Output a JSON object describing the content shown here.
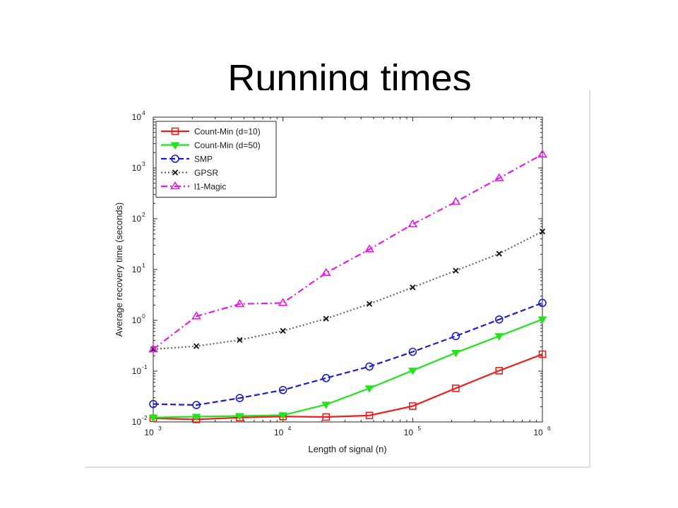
{
  "slide": {
    "title": "Running times"
  },
  "chart_data": {
    "type": "line",
    "xlabel": "Length of signal (n)",
    "ylabel": "Average recovery time (seconds)",
    "x_scale": "log",
    "y_scale": "log",
    "xlim": [
      1000,
      1000000
    ],
    "ylim": [
      0.01,
      10000
    ],
    "x_ticks": [
      {
        "value": 1000,
        "base": "10",
        "exp": "3"
      },
      {
        "value": 10000,
        "base": "10",
        "exp": "4"
      },
      {
        "value": 100000,
        "base": "10",
        "exp": "5"
      },
      {
        "value": 1000000,
        "base": "10",
        "exp": "6"
      }
    ],
    "y_ticks": [
      {
        "value": 0.01,
        "base": "10",
        "exp": "-2"
      },
      {
        "value": 0.1,
        "base": "10",
        "exp": "-1"
      },
      {
        "value": 1,
        "base": "10",
        "exp": "0"
      },
      {
        "value": 10,
        "base": "10",
        "exp": "1"
      },
      {
        "value": 100,
        "base": "10",
        "exp": "2"
      },
      {
        "value": 1000,
        "base": "10",
        "exp": "3"
      },
      {
        "value": 10000,
        "base": "10",
        "exp": "4"
      }
    ],
    "grid": false,
    "legend_position": "top-left",
    "x": [
      1000,
      2150,
      4640,
      10000,
      21500,
      46400,
      100000,
      215000,
      464000,
      1000000
    ],
    "series": [
      {
        "name": "Count-Min (d=10)",
        "key": "count-min-d10",
        "color": "#ee1c1c",
        "marker": "square",
        "dash": "solid",
        "values": [
          0.0118,
          0.0112,
          0.0122,
          0.0128,
          0.0125,
          0.0134,
          0.0205,
          0.046,
          0.102,
          0.215
        ]
      },
      {
        "name": "Count-Min (d=50)",
        "key": "count-min-d50",
        "color": "#22e41c",
        "marker": "triangle-down",
        "dash": "solid",
        "values": [
          0.0122,
          0.0127,
          0.0131,
          0.0136,
          0.022,
          0.046,
          0.103,
          0.23,
          0.49,
          1.05
        ]
      },
      {
        "name": "SMP",
        "key": "smp",
        "color": "#1c1cd6",
        "marker": "circle",
        "dash": "dashed",
        "values": [
          0.0225,
          0.0215,
          0.0295,
          0.0425,
          0.073,
          0.123,
          0.24,
          0.49,
          1.04,
          2.2
        ]
      },
      {
        "name": "GPSR",
        "key": "gpsr",
        "color": "#666666",
        "marker": "x",
        "dash": "dotted",
        "values": [
          0.27,
          0.31,
          0.41,
          0.62,
          1.08,
          2.1,
          4.45,
          9.5,
          20.5,
          56
        ]
      },
      {
        "name": "l1-Magic",
        "key": "l1-magic",
        "color": "#e61ce6",
        "marker": "triangle-up",
        "dash": "dashdot",
        "values": [
          0.27,
          1.2,
          2.1,
          2.2,
          8.6,
          25,
          78,
          215,
          630,
          1850
        ]
      }
    ]
  }
}
